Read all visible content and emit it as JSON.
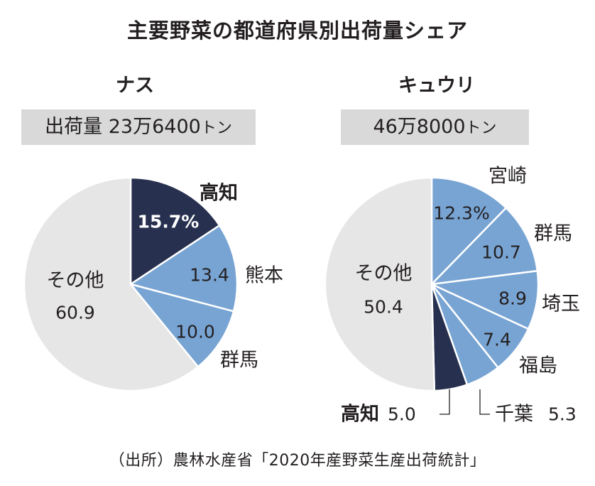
{
  "title": "主要野菜の都道府県別出荷量シェア",
  "source": "（出所）農林水産省「2020年産野菜生産出荷統計」",
  "colors": {
    "dark": "#27304f",
    "blue": "#78a4d3",
    "gray": "#e6e6e6",
    "stroke": "#ffffff"
  },
  "panels": [
    {
      "title": "ナス",
      "total_prefix": "出荷量",
      "total_value": "23万6400",
      "total_unit": "トン"
    },
    {
      "title": "キュウリ",
      "total_prefix": "",
      "total_value": "46万8000",
      "total_unit": "トン"
    }
  ],
  "chart_data": [
    {
      "type": "pie",
      "title": "ナス",
      "slices": [
        {
          "name": "高知",
          "value": 15.7,
          "value_label": "15.7%",
          "color": "dark"
        },
        {
          "name": "熊本",
          "value": 13.4,
          "value_label": "13.4",
          "color": "blue"
        },
        {
          "name": "群馬",
          "value": 10.0,
          "value_label": "10.0",
          "color": "blue"
        },
        {
          "name": "その他",
          "value": 60.9,
          "value_label": "60.9",
          "color": "gray"
        }
      ]
    },
    {
      "type": "pie",
      "title": "キュウリ",
      "slices": [
        {
          "name": "宮崎",
          "value": 12.3,
          "value_label": "12.3%",
          "color": "blue"
        },
        {
          "name": "群馬",
          "value": 10.7,
          "value_label": "10.7",
          "color": "blue"
        },
        {
          "name": "埼玉",
          "value": 8.9,
          "value_label": "8.9",
          "color": "blue"
        },
        {
          "name": "福島",
          "value": 7.4,
          "value_label": "7.4",
          "color": "blue"
        },
        {
          "name": "千葉",
          "value": 5.3,
          "value_label": "5.3",
          "color": "blue"
        },
        {
          "name": "高知",
          "value": 5.0,
          "value_label": "5.0",
          "color": "dark"
        },
        {
          "name": "その他",
          "value": 50.4,
          "value_label": "50.4",
          "color": "gray"
        }
      ]
    }
  ]
}
